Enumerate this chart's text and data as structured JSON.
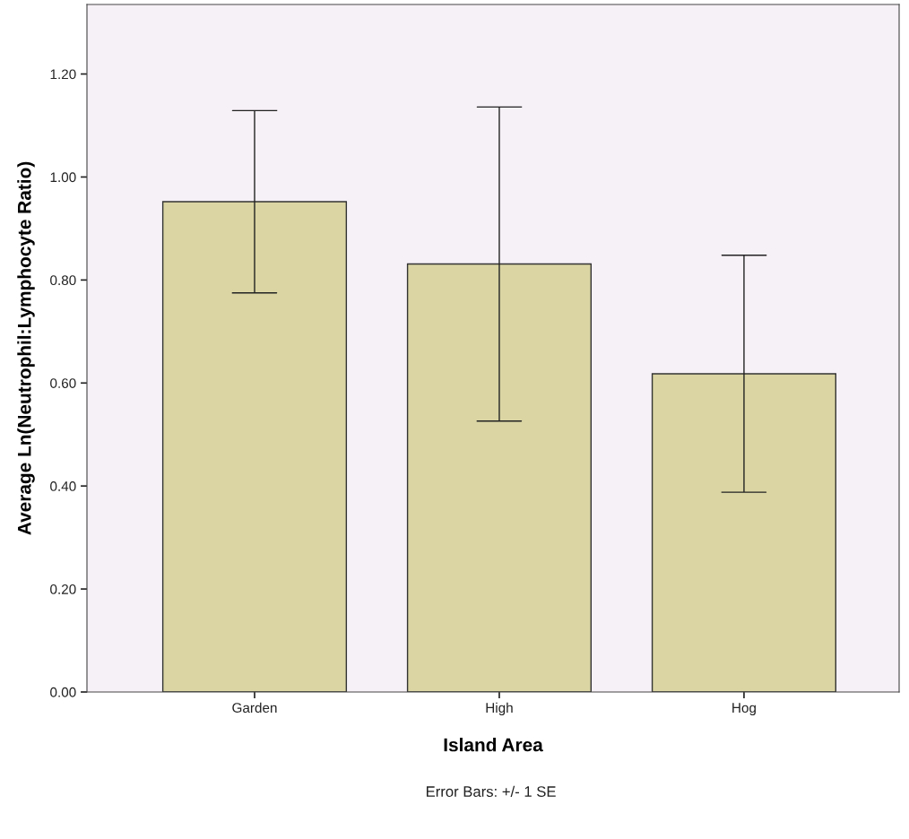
{
  "chart_data": {
    "type": "bar",
    "xlabel": "Island Area",
    "ylabel": "Average Ln(Neutrophil:Lymphocyte Ratio)",
    "categories": [
      "Garden",
      "High",
      "Hog"
    ],
    "values": [
      0.952,
      0.831,
      0.618
    ],
    "errors": [
      [
        0.775,
        1.129
      ],
      [
        0.526,
        1.136
      ],
      [
        0.388,
        0.848
      ]
    ],
    "color": "#dad5a3",
    "ylim": [
      0,
      1.335
    ],
    "yticks": [
      {
        "value": 0,
        "label": "0.00"
      },
      {
        "value": 0.2,
        "label": "0.20"
      },
      {
        "value": 0.4,
        "label": "0.40"
      },
      {
        "value": 0.6,
        "label": "0.60"
      },
      {
        "value": 0.8,
        "label": "0.80"
      },
      {
        "value": 1.0,
        "label": "1.00"
      },
      {
        "value": 1.2,
        "label": "1.20"
      }
    ],
    "grid": false,
    "annotations": [
      "Error Bars: +/- 1 SE"
    ]
  }
}
